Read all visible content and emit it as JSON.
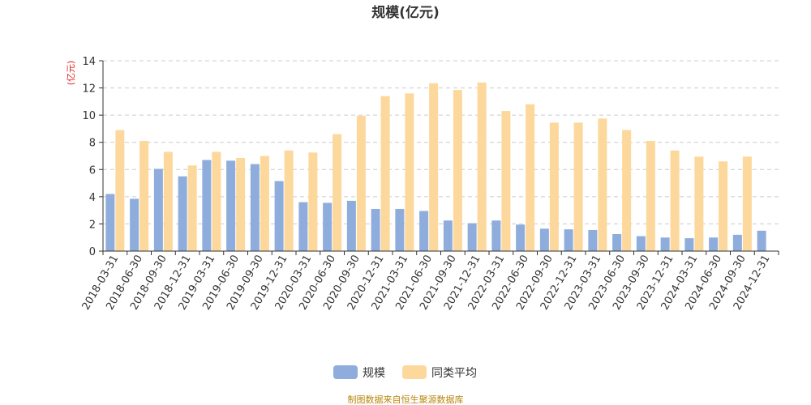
{
  "chart_data": {
    "type": "bar",
    "title": "规模(亿元)",
    "ylabel": "(亿元)",
    "xlabel": "",
    "ylim": [
      0,
      14
    ],
    "yticks": [
      0,
      2,
      4,
      6,
      8,
      10,
      12,
      14
    ],
    "grid": true,
    "legend_position": "bottom",
    "categories": [
      "2018-03-31",
      "2018-06-30",
      "2018-09-30",
      "2018-12-31",
      "2019-03-31",
      "2019-06-30",
      "2019-09-30",
      "2019-12-31",
      "2020-03-31",
      "2020-06-30",
      "2020-09-30",
      "2020-12-31",
      "2021-03-31",
      "2021-06-30",
      "2021-09-30",
      "2021-12-31",
      "2022-03-31",
      "2022-06-30",
      "2022-09-30",
      "2022-12-31",
      "2023-03-31",
      "2023-06-30",
      "2023-09-30",
      "2023-12-31",
      "2024-03-31",
      "2024-06-30",
      "2024-09-30",
      "2024-12-31"
    ],
    "series": [
      {
        "name": "规模",
        "color": "#8eaddc",
        "values": [
          4.2,
          3.85,
          6.05,
          5.5,
          6.7,
          6.65,
          6.4,
          5.15,
          3.6,
          3.55,
          3.7,
          3.1,
          3.1,
          2.95,
          2.25,
          2.05,
          2.25,
          1.95,
          1.65,
          1.6,
          1.55,
          1.25,
          1.1,
          1.0,
          0.95,
          1.0,
          1.2,
          1.5
        ]
      },
      {
        "name": "同类平均",
        "color": "#fdd89c",
        "values": [
          8.9,
          8.1,
          7.3,
          6.3,
          7.3,
          6.85,
          7.0,
          7.4,
          7.25,
          8.6,
          9.95,
          11.4,
          11.6,
          12.35,
          11.85,
          12.4,
          10.3,
          10.8,
          9.45,
          9.45,
          9.75,
          8.9,
          8.1,
          7.4,
          6.95,
          6.6,
          6.95,
          null
        ]
      }
    ]
  },
  "footer": "制图数据来自恒生聚源数据库"
}
